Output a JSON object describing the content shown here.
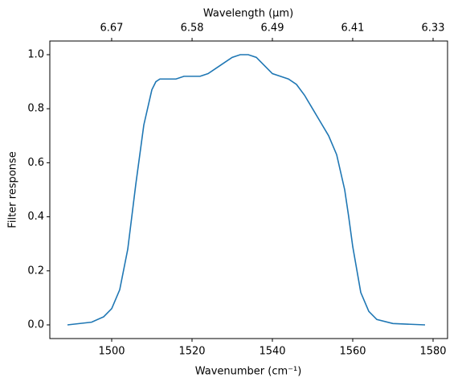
{
  "chart_data": {
    "type": "line",
    "xlabel": "Wavenumber (cm⁻¹)",
    "ylabel": "Filter response",
    "x2label": "Wavelength (μm)",
    "x": [
      1489,
      1495,
      1498,
      1500,
      1502,
      1504,
      1506,
      1508,
      1510,
      1511,
      1512,
      1514,
      1516,
      1518,
      1520,
      1522,
      1524,
      1526,
      1528,
      1530,
      1532,
      1534,
      1536,
      1538,
      1540,
      1542,
      1544,
      1546,
      1548,
      1550,
      1552,
      1554,
      1556,
      1558,
      1559,
      1560,
      1562,
      1564,
      1566,
      1570,
      1578
    ],
    "series": [
      {
        "color": "#1f77b4",
        "values": [
          0.0,
          0.01,
          0.03,
          0.06,
          0.13,
          0.28,
          0.52,
          0.74,
          0.87,
          0.9,
          0.91,
          0.91,
          0.91,
          0.92,
          0.92,
          0.92,
          0.93,
          0.95,
          0.97,
          0.99,
          1.0,
          1.0,
          0.99,
          0.96,
          0.93,
          0.92,
          0.91,
          0.89,
          0.85,
          0.8,
          0.75,
          0.7,
          0.63,
          0.5,
          0.4,
          0.29,
          0.12,
          0.05,
          0.02,
          0.005,
          0.0
        ]
      }
    ],
    "xlim": [
      1484.6,
      1583.6
    ],
    "ylim": [
      -0.0506,
      1.0506
    ],
    "xticks": [
      1500,
      1520,
      1540,
      1560,
      1580
    ],
    "yticks": [
      {
        "value": 0,
        "label": "0.0"
      },
      {
        "value": 0.2,
        "label": "0.2"
      },
      {
        "value": 0.4,
        "label": "0.4"
      },
      {
        "value": 0.6,
        "label": "0.6"
      },
      {
        "value": 0.8,
        "label": "0.8"
      },
      {
        "value": 1,
        "label": "1.0"
      }
    ],
    "x2ticks": [
      {
        "value": 6.6667,
        "label": "6.67"
      },
      {
        "value": 6.5789,
        "label": "6.58"
      },
      {
        "value": 6.4935,
        "label": "6.49"
      },
      {
        "value": 6.4103,
        "label": "6.41"
      },
      {
        "value": 6.3291,
        "label": "6.33"
      }
    ]
  }
}
